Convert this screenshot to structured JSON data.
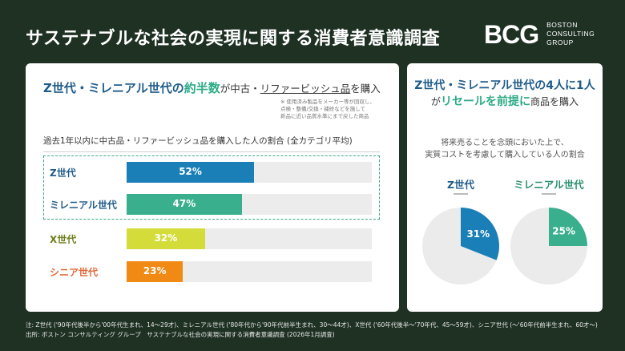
{
  "title": "サステナブルな社会の実現に関する消費者意識調査",
  "logo": {
    "mark": "BCG",
    "line1": "BOSTON",
    "line2": "CONSULTING",
    "line3": "GROUP"
  },
  "left_card": {
    "headline_a": "Z世代・ミレニアル世代の",
    "headline_b": "約半数",
    "headline_c": "が中古・",
    "headline_d": "リファービッシュ品",
    "headline_e": "を購入",
    "note": "※ 使用済み製品をメーカー等が回収し、\n点検・整備/交換・補修などを施して\n新品に近い品質水準にまで戻した商品",
    "subtitle": "過去1年以内に中古品・リファービッシュ品を購入した人の割合 (全カテゴリ平均)"
  },
  "right_card": {
    "headline_a": "Z世代・ミレニアル世代の4人に1人",
    "headline_b": "が",
    "headline_c": "リセールを前提に",
    "headline_d": "商品を購入",
    "desc_line1": "将来売ることを念頭においた上で、",
    "desc_line2": "実質コストを考慮して購入している人の割合"
  },
  "colors": {
    "z": "#1a7fb7",
    "millennial": "#3aaf8d",
    "x": "#d4dc3a",
    "senior": "#f08a14",
    "track": "#ececec",
    "pie_rest": "#ebebeb"
  },
  "chart_data": [
    {
      "type": "bar",
      "categories": [
        "Z世代",
        "ミレニアル世代",
        "X世代",
        "シニア世代"
      ],
      "values": [
        52,
        47,
        32,
        23
      ],
      "value_labels": [
        "52%",
        "47%",
        "32%",
        "23%"
      ],
      "title": "過去1年以内に中古品・リファービッシュ品を購入した人の割合 (全カテゴリ平均)",
      "xlim": [
        0,
        100
      ]
    },
    {
      "type": "pie",
      "categories": [
        "Z世代",
        "ミレニアル世代"
      ],
      "values": [
        31,
        25
      ],
      "value_labels": [
        "31%",
        "25%"
      ],
      "title": "将来売ることを念頭においた上で、実質コストを考慮して購入している人の割合"
    }
  ],
  "footer": {
    "line1": "注: Z世代 ('90年代後半から'00年代生まれ、14～29才)、ミレニアル世代 ('80年代から'90年代前半生まれ、30～44才)、X世代 ('60年代後半～'70年代、45～59才)、シニア世代 (～'60年代前半生まれ、60才～)",
    "line2": "出所: ボストン コンサルティング グループ　サステナブルな社会の実現に関する消費者意識調査 (2026年1月調査)"
  }
}
